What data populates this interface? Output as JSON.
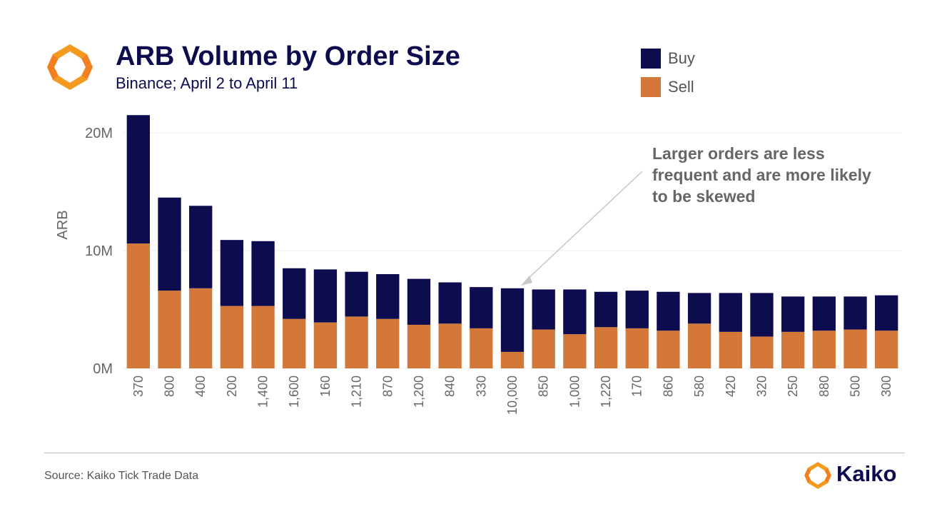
{
  "header": {
    "title": "ARB Volume by Order Size",
    "subtitle": "Binance; April 2 to April 11"
  },
  "legend": [
    {
      "label": "Buy",
      "color": "#0c0c4e"
    },
    {
      "label": "Sell",
      "color": "#d4783a"
    }
  ],
  "annotation": "Larger orders are less frequent and are more likely to be skewed",
  "footer": {
    "source": "Source: Kaiko Tick Trade Data",
    "brand": "Kaiko"
  },
  "chart_data": {
    "type": "bar",
    "stacked": true,
    "categories": [
      "370",
      "800",
      "400",
      "200",
      "1,400",
      "1,600",
      "160",
      "1,210",
      "870",
      "1,200",
      "840",
      "330",
      "10,000",
      "850",
      "1,000",
      "1,220",
      "170",
      "860",
      "580",
      "420",
      "320",
      "250",
      "880",
      "500",
      "300"
    ],
    "series": [
      {
        "name": "Sell",
        "color": "#d4783a",
        "values": [
          10.6,
          6.6,
          6.8,
          5.3,
          5.3,
          4.2,
          3.9,
          4.4,
          4.2,
          3.7,
          3.8,
          3.4,
          1.4,
          3.3,
          2.9,
          3.5,
          3.4,
          3.2,
          3.8,
          3.1,
          2.7,
          3.1,
          3.2,
          3.3,
          3.2
        ]
      },
      {
        "name": "Buy",
        "color": "#0c0c4e",
        "values": [
          10.9,
          7.9,
          7.0,
          5.6,
          5.5,
          4.3,
          4.5,
          3.8,
          3.8,
          3.9,
          3.5,
          3.5,
          5.4,
          3.4,
          3.8,
          3.0,
          3.2,
          3.3,
          2.6,
          3.3,
          3.7,
          3.0,
          2.9,
          2.8,
          3.0
        ]
      }
    ],
    "ylabel": "ARB",
    "ylim": [
      0,
      22
    ],
    "yticks": [
      {
        "value": 0,
        "label": "0M"
      },
      {
        "value": 10,
        "label": "10M"
      },
      {
        "value": 20,
        "label": "20M"
      }
    ],
    "grid": true,
    "legend_position": "top-right"
  }
}
